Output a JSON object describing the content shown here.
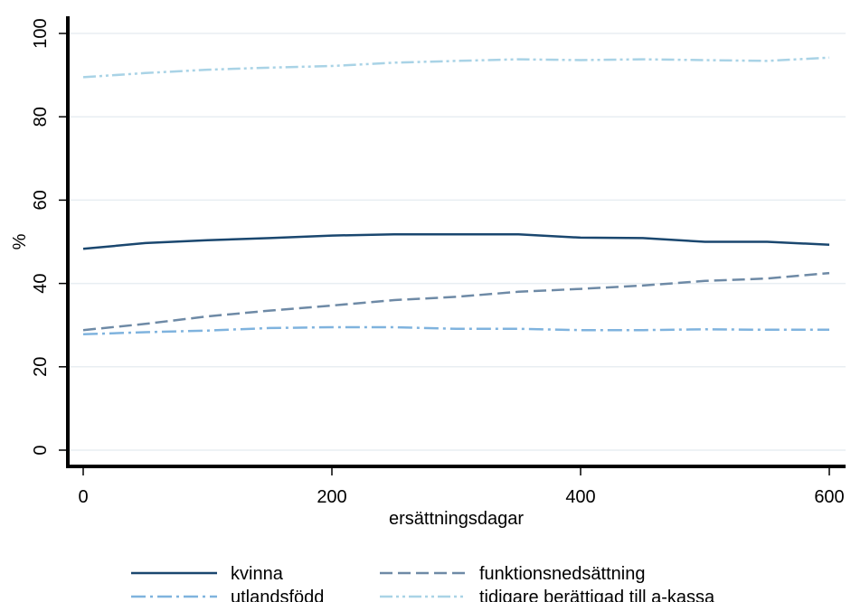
{
  "chart_data": {
    "type": "line",
    "title": "",
    "xlabel": "ersättningsdagar",
    "ylabel": "%",
    "xlim": [
      0,
      600
    ],
    "ylim": [
      0,
      100
    ],
    "xticks": [
      0,
      200,
      400,
      600
    ],
    "yticks": [
      0,
      20,
      40,
      60,
      80,
      100
    ],
    "grid": "horizontal",
    "legend_position": "bottom",
    "x": [
      0,
      50,
      100,
      150,
      200,
      250,
      300,
      350,
      400,
      450,
      500,
      550,
      600
    ],
    "series": [
      {
        "name": "kvinna",
        "color": "#1a476f",
        "dash": "solid",
        "values": [
          48.3,
          49.7,
          50.4,
          50.9,
          51.5,
          51.8,
          51.8,
          51.8,
          51.0,
          50.9,
          50.0,
          50.0,
          49.3
        ]
      },
      {
        "name": "funktionsnedsättning",
        "color": "#6e8aa6",
        "dash": "dash",
        "values": [
          28.8,
          30.3,
          32.1,
          33.5,
          34.7,
          36.0,
          36.8,
          38.0,
          38.7,
          39.5,
          40.6,
          41.2,
          42.5
        ]
      },
      {
        "name": "utlandsfödd",
        "color": "#7fb3de",
        "dash": "dashdot",
        "values": [
          27.8,
          28.3,
          28.7,
          29.3,
          29.5,
          29.5,
          29.1,
          29.1,
          28.8,
          28.8,
          29.0,
          28.9,
          28.9
        ]
      },
      {
        "name": "tidigare berättigad till a-kassa",
        "color": "#a9d3e6",
        "dash": "dashdotdot",
        "values": [
          89.5,
          90.5,
          91.3,
          91.8,
          92.2,
          93.0,
          93.4,
          93.8,
          93.6,
          93.8,
          93.6,
          93.4,
          94.2
        ]
      }
    ]
  }
}
